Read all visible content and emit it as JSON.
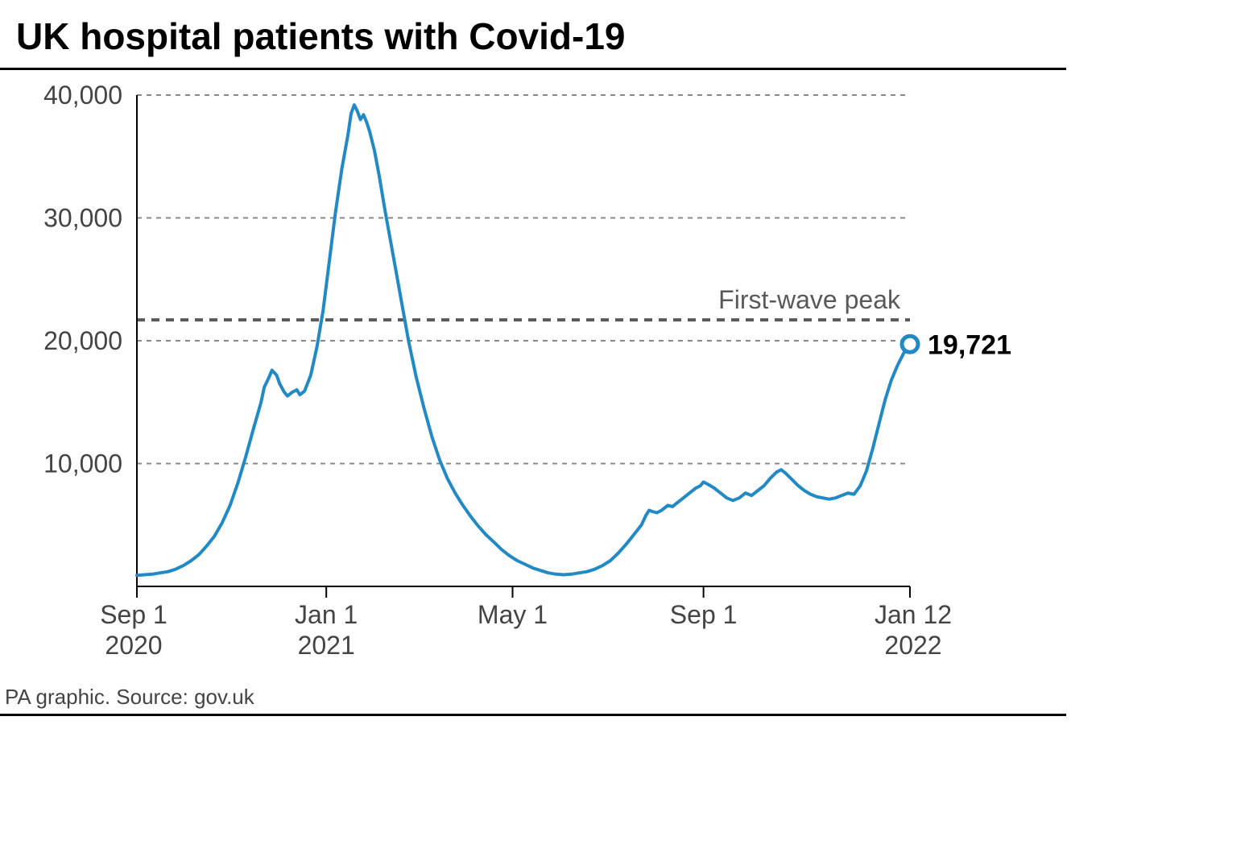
{
  "title": "UK hospital patients with Covid-19",
  "footer": "PA graphic. Source: gov.uk",
  "chart": {
    "type": "line",
    "background_color": "#ffffff",
    "grid_color": "#888888",
    "grid_dash": "6,6",
    "axis_color": "#000000",
    "axis_width": 2,
    "line_color": "#2189c4",
    "line_width": 4,
    "ylim": [
      0,
      40000
    ],
    "yticks": [
      10000,
      20000,
      30000,
      40000
    ],
    "ytick_labels": [
      "10,000",
      "20,000",
      "30,000",
      "40,000"
    ],
    "ytick_fontsize": 32,
    "xlim_days": [
      0,
      498
    ],
    "xticks_days": [
      0,
      122,
      242,
      365,
      498
    ],
    "xtick_labels_top": [
      "Sep 1",
      "Jan 1",
      "May 1",
      "Sep 1",
      "Jan 12"
    ],
    "xtick_labels_bottom": [
      "2020",
      "2021",
      "",
      "",
      "2022"
    ],
    "xtick_fontsize": 32,
    "annotation": {
      "label": "First-wave peak",
      "value": 21700,
      "line_color": "#595959",
      "line_width": 4,
      "line_dash": "10,8",
      "text_color": "#595959",
      "text_fontsize": 32
    },
    "endpoint": {
      "label": "19,721",
      "value": 19721,
      "marker_stroke": "#2189c4",
      "marker_fill": "#ffffff",
      "marker_radius": 10,
      "marker_stroke_width": 5,
      "text_fontsize": 34,
      "text_weight": "bold"
    },
    "series": [
      [
        0,
        900
      ],
      [
        5,
        950
      ],
      [
        10,
        1000
      ],
      [
        15,
        1100
      ],
      [
        20,
        1200
      ],
      [
        25,
        1400
      ],
      [
        30,
        1700
      ],
      [
        35,
        2100
      ],
      [
        40,
        2600
      ],
      [
        45,
        3300
      ],
      [
        50,
        4100
      ],
      [
        55,
        5200
      ],
      [
        60,
        6600
      ],
      [
        65,
        8400
      ],
      [
        70,
        10500
      ],
      [
        75,
        12800
      ],
      [
        80,
        15000
      ],
      [
        82,
        16200
      ],
      [
        85,
        17000
      ],
      [
        87,
        17600
      ],
      [
        90,
        17200
      ],
      [
        92,
        16500
      ],
      [
        95,
        15800
      ],
      [
        97,
        15500
      ],
      [
        100,
        15800
      ],
      [
        103,
        16000
      ],
      [
        105,
        15600
      ],
      [
        108,
        15900
      ],
      [
        112,
        17200
      ],
      [
        116,
        19500
      ],
      [
        120,
        22500
      ],
      [
        124,
        26500
      ],
      [
        128,
        30500
      ],
      [
        132,
        34000
      ],
      [
        136,
        36800
      ],
      [
        138,
        38500
      ],
      [
        140,
        39200
      ],
      [
        142,
        38700
      ],
      [
        144,
        38000
      ],
      [
        146,
        38400
      ],
      [
        148,
        37800
      ],
      [
        150,
        37000
      ],
      [
        153,
        35500
      ],
      [
        156,
        33500
      ],
      [
        160,
        30500
      ],
      [
        165,
        27000
      ],
      [
        170,
        23500
      ],
      [
        175,
        20000
      ],
      [
        180,
        17000
      ],
      [
        185,
        14500
      ],
      [
        190,
        12200
      ],
      [
        195,
        10300
      ],
      [
        200,
        8800
      ],
      [
        205,
        7600
      ],
      [
        210,
        6600
      ],
      [
        215,
        5700
      ],
      [
        220,
        4900
      ],
      [
        225,
        4200
      ],
      [
        230,
        3600
      ],
      [
        235,
        3000
      ],
      [
        240,
        2500
      ],
      [
        245,
        2100
      ],
      [
        250,
        1800
      ],
      [
        255,
        1500
      ],
      [
        260,
        1300
      ],
      [
        265,
        1100
      ],
      [
        270,
        1000
      ],
      [
        275,
        950
      ],
      [
        280,
        1000
      ],
      [
        285,
        1100
      ],
      [
        290,
        1200
      ],
      [
        295,
        1400
      ],
      [
        300,
        1700
      ],
      [
        305,
        2100
      ],
      [
        310,
        2700
      ],
      [
        315,
        3400
      ],
      [
        320,
        4200
      ],
      [
        325,
        5000
      ],
      [
        328,
        5800
      ],
      [
        330,
        6200
      ],
      [
        332,
        6100
      ],
      [
        335,
        6000
      ],
      [
        338,
        6200
      ],
      [
        342,
        6600
      ],
      [
        345,
        6500
      ],
      [
        348,
        6800
      ],
      [
        352,
        7200
      ],
      [
        356,
        7600
      ],
      [
        360,
        8000
      ],
      [
        363,
        8200
      ],
      [
        365,
        8500
      ],
      [
        368,
        8300
      ],
      [
        372,
        8000
      ],
      [
        376,
        7600
      ],
      [
        380,
        7200
      ],
      [
        384,
        7000
      ],
      [
        388,
        7200
      ],
      [
        392,
        7600
      ],
      [
        396,
        7400
      ],
      [
        400,
        7800
      ],
      [
        404,
        8200
      ],
      [
        408,
        8800
      ],
      [
        412,
        9300
      ],
      [
        415,
        9500
      ],
      [
        418,
        9200
      ],
      [
        422,
        8700
      ],
      [
        426,
        8200
      ],
      [
        430,
        7800
      ],
      [
        434,
        7500
      ],
      [
        438,
        7300
      ],
      [
        442,
        7200
      ],
      [
        446,
        7100
      ],
      [
        450,
        7200
      ],
      [
        454,
        7400
      ],
      [
        458,
        7600
      ],
      [
        462,
        7500
      ],
      [
        466,
        8200
      ],
      [
        470,
        9400
      ],
      [
        474,
        11200
      ],
      [
        478,
        13200
      ],
      [
        482,
        15200
      ],
      [
        486,
        16800
      ],
      [
        490,
        18000
      ],
      [
        494,
        19000
      ],
      [
        498,
        19721
      ]
    ]
  }
}
